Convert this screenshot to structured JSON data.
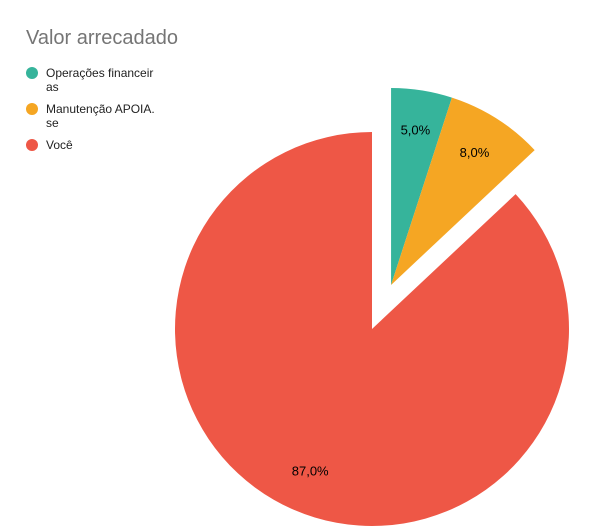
{
  "chart_data": {
    "type": "pie",
    "title": "Valor arrecadado",
    "categories": [
      "Operações financeiras",
      "Manutenção APOIA.se",
      "Você"
    ],
    "values": [
      5,
      8,
      87
    ],
    "value_labels": [
      "5,0%",
      "8,0%",
      "87,0%"
    ],
    "colors": [
      "#36b49b",
      "#f5a623",
      "#ee5746"
    ],
    "exploded": [
      true,
      true,
      false
    ],
    "legend": "left"
  }
}
